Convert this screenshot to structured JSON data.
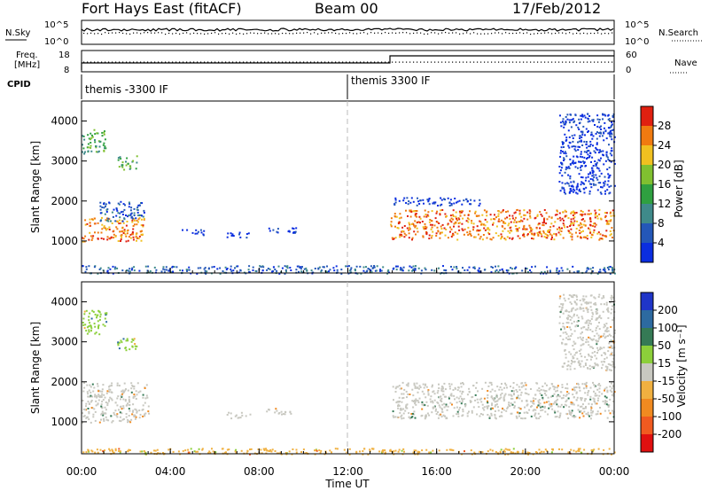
{
  "header": {
    "title": "Fort Hays East (fitACF)",
    "beam": "Beam 00",
    "date": "17/Feb/2012"
  },
  "summary": {
    "nsky_label": "N.Sky",
    "nsky_ticks": [
      "10^5",
      "10^0"
    ],
    "nsearch_label": "N.Search",
    "nsearch_ticks": [
      "10^5",
      "10^0"
    ],
    "freq_label_1": "Freq.",
    "freq_label_2": "[MHz]",
    "freq_ticks": [
      "18",
      "8"
    ],
    "nave_label": "Nave",
    "nave_ticks": [
      "60",
      "0"
    ],
    "cpid_label": "CPID",
    "cpid_segments": [
      {
        "label": "themis -3300 IF",
        "start_hour": 0
      },
      {
        "label": "themis 3300 IF",
        "start_hour": 12
      }
    ]
  },
  "chart_data": [
    {
      "type": "heatmap",
      "name": "power-panel",
      "xlabel": "",
      "ylabel": "Slant Range [km]",
      "xlim": [
        0,
        24
      ],
      "ylim": [
        200,
        4500
      ],
      "y_ticks": [
        1000,
        2000,
        3000,
        4000
      ],
      "colorbar": {
        "label": "Power [dB]",
        "ticks": [
          "4",
          "8",
          "12",
          "16",
          "20",
          "24",
          "28"
        ],
        "colors": [
          "#0b2ee0",
          "#2457b8",
          "#3f8a8a",
          "#2fa040",
          "#80c030",
          "#f0c020",
          "#f07a10",
          "#e02010"
        ]
      },
      "regions": [
        {
          "t": [
            0.0,
            1.1
          ],
          "r": [
            3200,
            3800
          ],
          "level": 3
        },
        {
          "t": [
            1.6,
            2.5
          ],
          "r": [
            2800,
            3150
          ],
          "level": 3
        },
        {
          "t": [
            0.0,
            2.8
          ],
          "r": [
            1000,
            1600
          ],
          "level": 6
        },
        {
          "t": [
            0.8,
            2.8
          ],
          "r": [
            1500,
            2000
          ],
          "level": 1
        },
        {
          "t": [
            4.5,
            5.5
          ],
          "r": [
            1150,
            1300
          ],
          "level": 0
        },
        {
          "t": [
            6.5,
            7.6
          ],
          "r": [
            1100,
            1250
          ],
          "level": 0
        },
        {
          "t": [
            8.3,
            9.7
          ],
          "r": [
            1200,
            1350
          ],
          "level": 0
        },
        {
          "t": [
            13.9,
            24.0
          ],
          "r": [
            1050,
            1800
          ],
          "level": 6
        },
        {
          "t": [
            14.0,
            18.0
          ],
          "r": [
            1900,
            2100
          ],
          "level": 0
        },
        {
          "t": [
            21.5,
            24.0
          ],
          "r": [
            2200,
            4200
          ],
          "level": 0
        },
        {
          "t": [
            0.0,
            24.0
          ],
          "r": [
            200,
            400
          ],
          "level": 1
        }
      ]
    },
    {
      "type": "heatmap",
      "name": "velocity-panel",
      "xlabel": "Time UT",
      "ylabel": "Slant Range [km]",
      "xlim": [
        0,
        24
      ],
      "ylim": [
        200,
        4500
      ],
      "y_ticks": [
        1000,
        2000,
        3000,
        4000
      ],
      "x_ticks": [
        "00:00",
        "04:00",
        "08:00",
        "12:00",
        "16:00",
        "20:00",
        "00:00"
      ],
      "colorbar": {
        "label": "Velocity [m s⁻¹]",
        "ticks": [
          "200",
          "100",
          "50",
          "15",
          "-15",
          "-50",
          "-100",
          "-200"
        ],
        "colors": [
          "#1f35c8",
          "#2d6aa0",
          "#357a55",
          "#8ccf3a",
          "#c8c8c0",
          "#f0b040",
          "#f08a20",
          "#f05a20",
          "#e01010"
        ]
      },
      "regions": [
        {
          "t": [
            0.0,
            1.1
          ],
          "r": [
            3200,
            3800
          ],
          "level": 3
        },
        {
          "t": [
            1.6,
            2.5
          ],
          "r": [
            2800,
            3150
          ],
          "level": 3
        },
        {
          "t": [
            0.0,
            3.0
          ],
          "r": [
            1000,
            2000
          ],
          "level": 4
        },
        {
          "t": [
            6.5,
            7.6
          ],
          "r": [
            1100,
            1250
          ],
          "level": 4
        },
        {
          "t": [
            8.3,
            9.7
          ],
          "r": [
            1200,
            1350
          ],
          "level": 4
        },
        {
          "t": [
            14.0,
            24.0
          ],
          "r": [
            1100,
            2000
          ],
          "level": 4
        },
        {
          "t": [
            21.5,
            24.0
          ],
          "r": [
            2300,
            4200
          ],
          "level": 4
        },
        {
          "t": [
            0.0,
            24.0
          ],
          "r": [
            200,
            350
          ],
          "level": 5
        }
      ]
    }
  ]
}
